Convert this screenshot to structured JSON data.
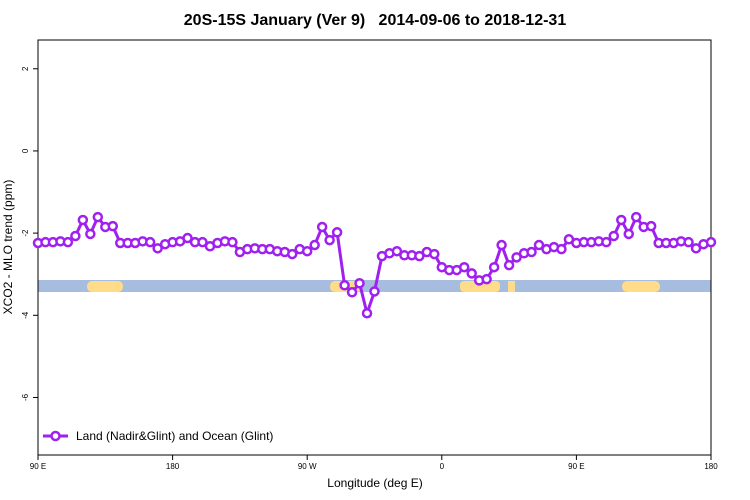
{
  "chart_data": {
    "type": "line",
    "title": "20S-15S January (Ver 9)   2014-09-06 to 2018-12-31",
    "x_label": "Longitude (deg E)",
    "y_label": "XCO2 - MLO trend (ppm)",
    "x": [
      90,
      95,
      100,
      105,
      110,
      115,
      120,
      125,
      130,
      135,
      140,
      145,
      150,
      155,
      160,
      165,
      170,
      175,
      180,
      185,
      190,
      195,
      200,
      205,
      210,
      215,
      220,
      225,
      230,
      235,
      240,
      245,
      250,
      255,
      260,
      265,
      270,
      275,
      280,
      285,
      290,
      295,
      300,
      305,
      310,
      315,
      320,
      325,
      330,
      335,
      340,
      345,
      350,
      355,
      360,
      365,
      370,
      375,
      380,
      385,
      390,
      395,
      400,
      405,
      410,
      415,
      420,
      425,
      430,
      435,
      440,
      445,
      450,
      455,
      460,
      465,
      470,
      475,
      480,
      485,
      490,
      495,
      500,
      505,
      510,
      515,
      520,
      525,
      530,
      535,
      540
    ],
    "series": [
      {
        "name": "Land (Nadir&Glint) and Ocean (Glint)",
        "color": "#a020f0",
        "values": [
          -2.24,
          -2.22,
          -2.22,
          -2.2,
          -2.22,
          -2.07,
          -1.68,
          -2.02,
          -1.61,
          -1.85,
          -1.83,
          -2.24,
          -2.24,
          -2.24,
          -2.2,
          -2.22,
          -2.37,
          -2.27,
          -2.22,
          -2.2,
          -2.12,
          -2.22,
          -2.22,
          -2.32,
          -2.24,
          -2.2,
          -2.22,
          -2.46,
          -2.39,
          -2.37,
          -2.39,
          -2.39,
          -2.44,
          -2.46,
          -2.51,
          -2.39,
          -2.44,
          -2.29,
          -1.85,
          -2.17,
          -1.98,
          -3.27,
          -3.44,
          -3.22,
          -3.95,
          -3.42,
          -2.56,
          -2.49,
          -2.44,
          -2.54,
          -2.54,
          -2.56,
          -2.46,
          -2.51,
          -2.83,
          -2.9,
          -2.9,
          -2.83,
          -2.98,
          -3.15,
          -3.12,
          -2.83,
          -2.29,
          -2.78,
          -2.59,
          -2.49,
          -2.46,
          -2.29,
          -2.39,
          -2.34,
          -2.39,
          -2.15,
          -2.24,
          -2.22,
          -2.22,
          -2.2,
          -2.22,
          -2.07,
          -1.68,
          -2.02,
          -1.61,
          -1.85,
          -1.83,
          -2.24,
          -2.24,
          -2.24,
          -2.2,
          -2.22,
          -2.37,
          -2.27,
          -2.22
        ]
      }
    ],
    "xlim": [
      90,
      540
    ],
    "xticks": [
      {
        "value": 90,
        "label": "90 E"
      },
      180,
      {
        "value": 270,
        "label": "90 W"
      },
      {
        "value": 360,
        "label": "0"
      },
      {
        "value": 450,
        "label": "90 E"
      },
      {
        "value": 540,
        "label": "180"
      }
    ],
    "ylim": [
      -7.4,
      2.7
    ],
    "yticks": [
      2,
      0,
      -2,
      -4,
      -6
    ],
    "legend": "bottomleft"
  }
}
